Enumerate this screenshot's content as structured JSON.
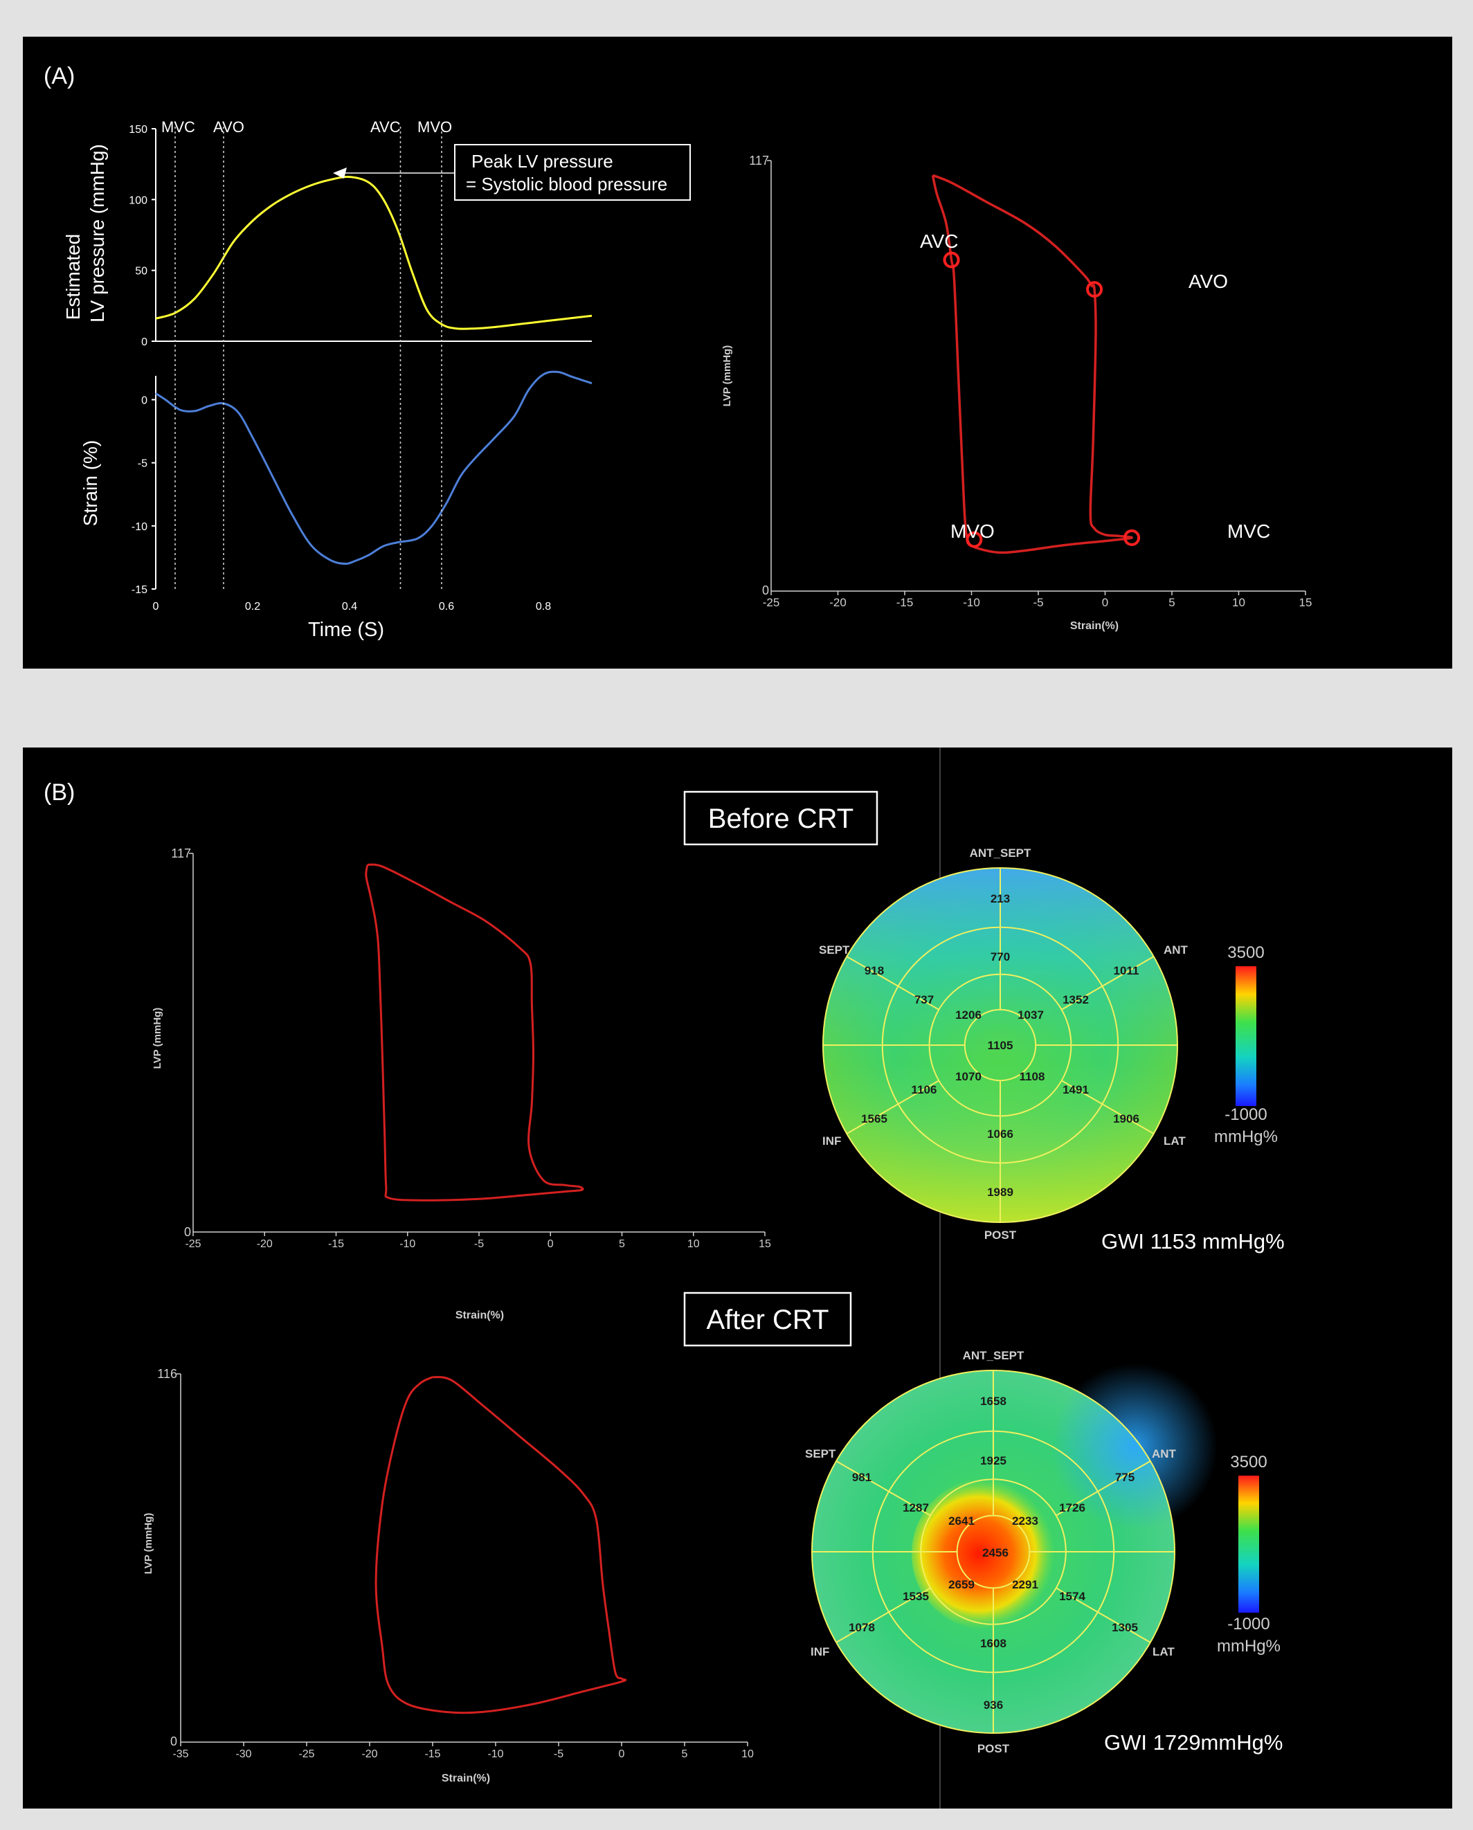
{
  "panel_a": {
    "label": "(A)",
    "pressure_ylabel_line1": "Estimated",
    "pressure_ylabel_line2": "LV pressure (mmHg)",
    "strain_ylabel": "Strain (%)",
    "xlabel": "Time (S)",
    "event_labels": [
      "MVC",
      "AVO",
      "AVC",
      "MVO"
    ],
    "callout_line1": "Peak LV pressure",
    "callout_line2": "= Systolic blood pressure",
    "loop_ylabel": "LVP (mmHg)",
    "loop_xlabel": "Strain(%)",
    "loop_ymax_label": "117",
    "loop_ymin_label": "0",
    "loop_points": [
      "AVC",
      "AVO",
      "MVO",
      "MVC"
    ]
  },
  "panel_b": {
    "label": "(B)",
    "before_title": "Before CRT",
    "after_title": "After CRT",
    "before_gwi": "GWI 1153 mmHg%",
    "after_gwi": "GWI 1729mmHg%",
    "loop_ylabel": "LVP (mmHg)",
    "loop_xlabel": "Strain(%)",
    "before_ymax": "117",
    "after_ymax": "116",
    "ymin": "0",
    "colorbar_max": "3500",
    "colorbar_min": "-1000",
    "colorbar_unit": "mmHg%",
    "wall_labels": {
      "top": "ANT_SEPT",
      "ul": "SEPT",
      "ur": "ANT",
      "ll": "INF",
      "lr": "LAT",
      "bottom": "POST"
    },
    "before_bullseye": {
      "apex": "1105",
      "apical": [
        "1206",
        "1037",
        "1108",
        "1070"
      ],
      "mid": [
        "770",
        "1352",
        "1491",
        "1066",
        "1106",
        "737"
      ],
      "basal": [
        "213",
        "1011",
        "1906",
        "1989",
        "1565",
        "918"
      ]
    },
    "after_bullseye": {
      "apex": "2456",
      "apical": [
        "2641",
        "2233",
        "2291",
        "2659"
      ],
      "mid": [
        "1925",
        "1726",
        "1574",
        "1608",
        "1535",
        "1287"
      ],
      "basal": [
        "1658",
        "775",
        "1305",
        "936",
        "1078",
        "981"
      ]
    }
  },
  "chart_data": [
    {
      "type": "line",
      "title": "",
      "xlabel": "Time (S)",
      "ylabel": "Estimated LV pressure (mmHg)",
      "xlim": [
        0,
        0.9
      ],
      "ylim": [
        0,
        150
      ],
      "xticks": [
        0,
        0.2,
        0.4,
        0.6,
        0.8
      ],
      "yticks": [
        0,
        50,
        100,
        150
      ],
      "events": [
        {
          "name": "MVC",
          "x": 0.04
        },
        {
          "name": "AVO",
          "x": 0.14
        },
        {
          "name": "AVC",
          "x": 0.505
        },
        {
          "name": "MVO",
          "x": 0.59
        }
      ],
      "series": [
        {
          "color": "#ffff33",
          "x": [
            0,
            0.04,
            0.08,
            0.12,
            0.16,
            0.2,
            0.24,
            0.28,
            0.32,
            0.36,
            0.4,
            0.44,
            0.47,
            0.5,
            0.53,
            0.56,
            0.59,
            0.62,
            0.66,
            0.7,
            0.75,
            0.8,
            0.85,
            0.9
          ],
          "y": [
            16,
            20,
            30,
            48,
            70,
            85,
            96,
            104,
            110,
            114,
            116,
            112,
            100,
            78,
            48,
            22,
            12,
            9,
            9,
            10,
            12,
            14,
            16,
            18
          ]
        }
      ]
    },
    {
      "type": "line",
      "title": "",
      "xlabel": "Time (S)",
      "ylabel": "Strain (%)",
      "xlim": [
        0,
        0.9
      ],
      "ylim": [
        -15,
        2
      ],
      "xticks": [
        0,
        0.2,
        0.4,
        0.6,
        0.8
      ],
      "yticks": [
        0,
        -5,
        -10,
        -15
      ],
      "series": [
        {
          "color": "#4d7fd8",
          "x": [
            0,
            0.02,
            0.05,
            0.08,
            0.11,
            0.14,
            0.17,
            0.2,
            0.24,
            0.28,
            0.32,
            0.36,
            0.39,
            0.41,
            0.44,
            0.47,
            0.5,
            0.54,
            0.57,
            0.6,
            0.63,
            0.66,
            0.7,
            0.74,
            0.77,
            0.8,
            0.83,
            0.86,
            0.9
          ],
          "y": [
            0.5,
            0,
            -0.8,
            -0.9,
            -0.5,
            -0.3,
            -1,
            -3,
            -6,
            -9,
            -11.5,
            -12.7,
            -13,
            -12.8,
            -12.3,
            -11.6,
            -11.3,
            -11,
            -10,
            -8.2,
            -6,
            -4.6,
            -3,
            -1.3,
            0.8,
            2,
            2.2,
            1.8,
            1.3
          ]
        }
      ]
    },
    {
      "type": "line",
      "title": "",
      "xlabel": "Strain(%)",
      "ylabel": "LVP (mmHg)",
      "xlim": [
        -25,
        15
      ],
      "ylim": [
        0,
        117
      ],
      "xticks": [
        -25,
        -20,
        -15,
        -10,
        -5,
        0,
        5,
        10,
        15
      ],
      "yticks": [
        0,
        117
      ],
      "markers": [
        {
          "name": "AVC",
          "x": -11.5,
          "y": 90
        },
        {
          "name": "AVO",
          "x": -0.8,
          "y": 82
        },
        {
          "name": "MVO",
          "x": -9.8,
          "y": 14
        },
        {
          "name": "MVC",
          "x": 2,
          "y": 14.5
        }
      ],
      "series": [
        {
          "color": "#d42020",
          "x": [
            -12.9,
            -11.5,
            -9,
            -6,
            -3.8,
            -1.6,
            -1,
            -0.8,
            -0.7,
            -0.9,
            -1.1,
            -0.8,
            0,
            1,
            2,
            0.5,
            -3,
            -6,
            -8,
            -9.8,
            -10.3,
            -10.5,
            -10.7,
            -11,
            -11.3,
            -11.5,
            -11.9,
            -12.6,
            -12.9
          ],
          "y": [
            113,
            111,
            106,
            100,
            94,
            86,
            83,
            82,
            70,
            40,
            21,
            17,
            15.3,
            15,
            14.5,
            13.8,
            12.5,
            11,
            10.5,
            12,
            14,
            20,
            35,
            60,
            85,
            90,
            100,
            108,
            113
          ]
        }
      ]
    },
    {
      "type": "line",
      "title": "",
      "xlabel": "Strain(%)",
      "ylabel": "LVP (mmHg)",
      "xlim": [
        -25,
        15
      ],
      "ylim": [
        0,
        117
      ],
      "xticks": [
        -25,
        -20,
        -15,
        -10,
        -5,
        0,
        5,
        10,
        15
      ],
      "yticks": [
        0,
        117
      ],
      "series": [
        {
          "color": "#d42020",
          "x": [
            -12.8,
            -11.8,
            -9.5,
            -7,
            -4.5,
            -2.2,
            -1.4,
            -1.3,
            -1.2,
            -1.3,
            -1.5,
            -0.5,
            1,
            2,
            2.2,
            1,
            -1.5,
            -5,
            -9,
            -11.3,
            -11.5,
            -11.6,
            -11.8,
            -12,
            -12.2,
            -12.6,
            -12.9,
            -12.8
          ],
          "y": [
            113.5,
            113,
            108,
            102,
            96,
            88,
            83,
            70,
            55,
            40,
            26,
            16,
            14.5,
            14,
            13,
            12.5,
            11.5,
            10.2,
            9.8,
            10.5,
            14,
            30,
            60,
            85,
            95,
            104,
            110,
            113.5
          ]
        }
      ]
    },
    {
      "type": "line",
      "title": "",
      "xlabel": "Strain(%)",
      "ylabel": "LVP (mmHg)",
      "xlim": [
        -35,
        10
      ],
      "ylim": [
        0,
        116
      ],
      "xticks": [
        -35,
        -30,
        -25,
        -20,
        -15,
        -10,
        -5,
        0,
        5,
        10
      ],
      "yticks": [
        0,
        116
      ],
      "series": [
        {
          "color": "#d42020",
          "x": [
            -15,
            -13.5,
            -11,
            -8,
            -5,
            -3,
            -2,
            -1.5,
            -1,
            -0.5,
            0,
            0.3,
            -0.5,
            -3,
            -7,
            -11,
            -14,
            -17,
            -18.5,
            -19,
            -19.5,
            -19,
            -18,
            -17,
            -16,
            -15
          ],
          "y": [
            115,
            114,
            106,
            96,
            86,
            78,
            70,
            50,
            35,
            22,
            20,
            19.5,
            18.5,
            16,
            12,
            9.5,
            9.5,
            12,
            18,
            30,
            50,
            75,
            95,
            108,
            113,
            115
          ]
        }
      ]
    },
    {
      "type": "heatmap",
      "title": "Before CRT",
      "segments": {
        "apex": 1105,
        "apical": [
          {
            "seg": "ANT_SEPT/SEPT",
            "v": 1206
          },
          {
            "seg": "ANT/LAT",
            "v": 1037
          },
          {
            "seg": "LAT/POST",
            "v": 1108
          },
          {
            "seg": "INF/POST",
            "v": 1070
          }
        ],
        "mid": [
          770,
          1352,
          1491,
          1066,
          1106,
          737
        ],
        "basal": [
          213,
          1011,
          1906,
          1989,
          1565,
          918
        ]
      },
      "colorbar": {
        "min": -1000,
        "max": 3500,
        "unit": "mmHg%"
      },
      "global": "GWI 1153 mmHg%"
    },
    {
      "type": "heatmap",
      "title": "After CRT",
      "segments": {
        "apex": 2456,
        "apical": [
          {
            "seg": "ANT_SEPT/SEPT",
            "v": 2641
          },
          {
            "seg": "ANT/LAT",
            "v": 2233
          },
          {
            "seg": "LAT/POST",
            "v": 2291
          },
          {
            "seg": "INF/POST",
            "v": 2659
          }
        ],
        "mid": [
          1925,
          1726,
          1574,
          1608,
          1535,
          1287
        ],
        "basal": [
          1658,
          775,
          1305,
          936,
          1078,
          981
        ]
      },
      "colorbar": {
        "min": -1000,
        "max": 3500,
        "unit": "mmHg%"
      },
      "global": "GWI 1729mmHg%"
    }
  ]
}
